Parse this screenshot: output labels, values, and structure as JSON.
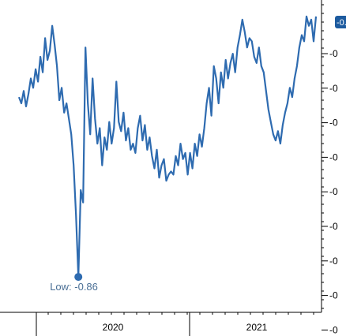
{
  "chart_data": {
    "type": "line",
    "title": "",
    "xlabel": "",
    "ylabel": "",
    "x_tick_labels": [
      "2020",
      "2021"
    ],
    "y_tick_labels": [
      "-0",
      "-0",
      "-0",
      "-0",
      "-0",
      "-0",
      "-0",
      "-0",
      "-0"
    ],
    "last_value_badge": "-0.",
    "low_annotation": {
      "label": "Low: -0.86",
      "value": -0.86
    },
    "ylim": [
      -0.87,
      -0.01
    ],
    "line_color": "#2e6bb0",
    "badge_color": "#1d5b9f",
    "grid": false,
    "series": [
      {
        "values": [
          -0.28,
          -0.3,
          -0.26,
          -0.31,
          -0.27,
          -0.22,
          -0.25,
          -0.19,
          -0.23,
          -0.15,
          -0.2,
          -0.09,
          -0.16,
          -0.13,
          -0.05,
          -0.11,
          -0.18,
          -0.29,
          -0.25,
          -0.33,
          -0.3,
          -0.35,
          -0.4,
          -0.5,
          -0.66,
          -0.86,
          -0.58,
          -0.62,
          -0.12,
          -0.3,
          -0.4,
          -0.22,
          -0.35,
          -0.43,
          -0.38,
          -0.5,
          -0.41,
          -0.45,
          -0.36,
          -0.43,
          -0.38,
          -0.23,
          -0.36,
          -0.39,
          -0.33,
          -0.42,
          -0.38,
          -0.45,
          -0.43,
          -0.46,
          -0.38,
          -0.34,
          -0.42,
          -0.37,
          -0.45,
          -0.41,
          -0.47,
          -0.51,
          -0.45,
          -0.54,
          -0.5,
          -0.48,
          -0.55,
          -0.53,
          -0.52,
          -0.53,
          -0.47,
          -0.5,
          -0.43,
          -0.48,
          -0.46,
          -0.53,
          -0.46,
          -0.51,
          -0.43,
          -0.47,
          -0.4,
          -0.44,
          -0.38,
          -0.3,
          -0.25,
          -0.34,
          -0.18,
          -0.22,
          -0.3,
          -0.2,
          -0.25,
          -0.16,
          -0.22,
          -0.17,
          -0.14,
          -0.2,
          -0.12,
          -0.08,
          -0.03,
          -0.07,
          -0.12,
          -0.09,
          -0.1,
          -0.15,
          -0.17,
          -0.12,
          -0.18,
          -0.2,
          -0.26,
          -0.32,
          -0.36,
          -0.4,
          -0.42,
          -0.39,
          -0.43,
          -0.37,
          -0.33,
          -0.3,
          -0.25,
          -0.28,
          -0.22,
          -0.18,
          -0.12,
          -0.08,
          -0.1,
          -0.02,
          -0.05,
          -0.03,
          -0.1,
          -0.02
        ]
      }
    ]
  }
}
